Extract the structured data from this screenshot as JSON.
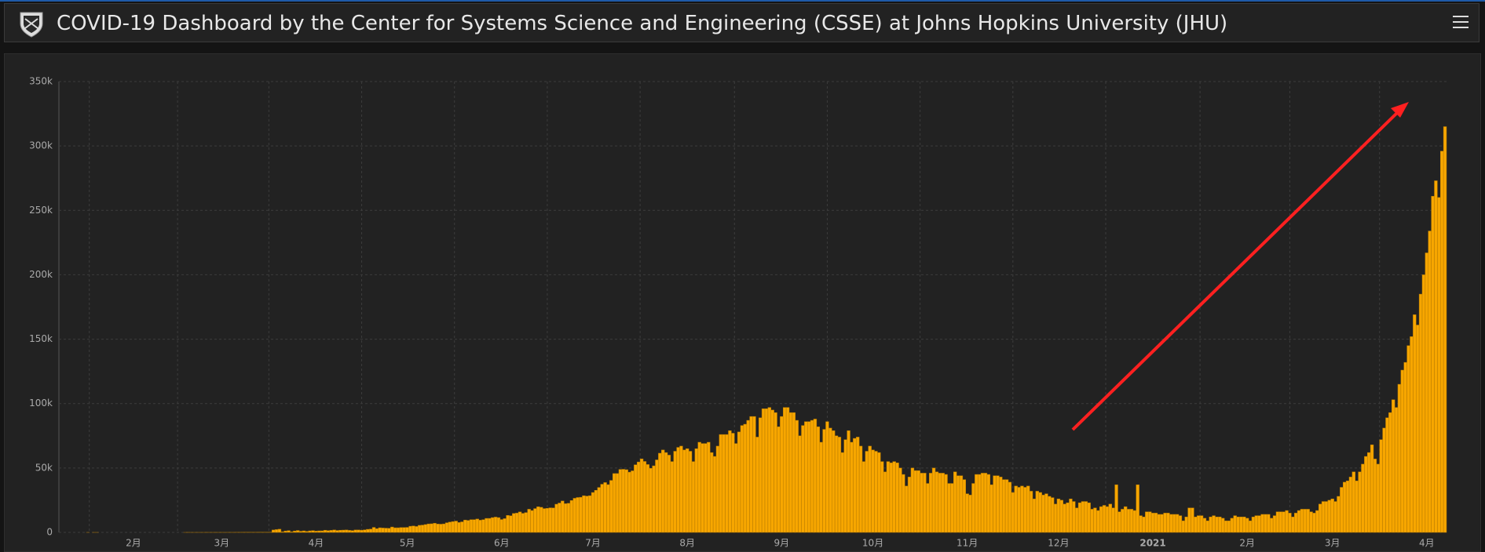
{
  "header": {
    "title": "COVID-19 Dashboard by the Center for Systems Science and Engineering (CSSE) at Johns Hopkins University (JHU)"
  },
  "chart_data": {
    "type": "bar",
    "color": "#f7a600",
    "grid": true,
    "ylim": [
      0,
      350000
    ],
    "yticks": [
      0,
      {
        "value": 50000,
        "label": "50k"
      },
      {
        "value": 100000,
        "label": "100k"
      },
      {
        "value": 150000,
        "label": "150k"
      },
      {
        "value": 200000,
        "label": "200k"
      },
      {
        "value": 250000,
        "label": "250k"
      },
      {
        "value": 300000,
        "label": "300k"
      },
      {
        "value": 350000,
        "label": "350k"
      }
    ],
    "categories": [
      null,
      null,
      null,
      null,
      null,
      null,
      null,
      null,
      null,
      null,
      null,
      null,
      null,
      null,
      null,
      null,
      null,
      null,
      null,
      null,
      null,
      null,
      null,
      null,
      "2月",
      null,
      null,
      null,
      null,
      null,
      null,
      null,
      null,
      null,
      null,
      null,
      null,
      null,
      null,
      null,
      null,
      null,
      null,
      null,
      null,
      null,
      null,
      null,
      null,
      null,
      null,
      null,
      null,
      "3月",
      null,
      null,
      null,
      null,
      null,
      null,
      null,
      null,
      null,
      null,
      null,
      null,
      null,
      null,
      null,
      null,
      null,
      null,
      null,
      null,
      null,
      null,
      null,
      null,
      null,
      null,
      null,
      null,
      null,
      null,
      "4月",
      null,
      null,
      null,
      null,
      null,
      null,
      null,
      null,
      null,
      null,
      null,
      null,
      null,
      null,
      null,
      null,
      null,
      null,
      null,
      null,
      null,
      null,
      null,
      null,
      null,
      null,
      null,
      null,
      null,
      "5月",
      null,
      null,
      null,
      null,
      null,
      null,
      null,
      null,
      null,
      null,
      null,
      null,
      null,
      null,
      null,
      null,
      null,
      null,
      null,
      null,
      null,
      null,
      null,
      null,
      null,
      null,
      null,
      null,
      null,
      null,
      "6月",
      null,
      null,
      null,
      null,
      null,
      null,
      null,
      null,
      null,
      null,
      null,
      null,
      null,
      null,
      null,
      null,
      null,
      null,
      null,
      null,
      null,
      null,
      null,
      null,
      null,
      null,
      null,
      null,
      null,
      "7月",
      null,
      null,
      null,
      null,
      null,
      null,
      null,
      null,
      null,
      null,
      null,
      null,
      null,
      null,
      null,
      null,
      null,
      null,
      null,
      null,
      null,
      null,
      null,
      null,
      null,
      null,
      null,
      null,
      null,
      null,
      "8月",
      null,
      null,
      null,
      null,
      null,
      null,
      null,
      null,
      null,
      null,
      null,
      null,
      null,
      null,
      null,
      null,
      null,
      null,
      null,
      null,
      null,
      null,
      null,
      null,
      null,
      null,
      null,
      null,
      null,
      null,
      "9月",
      null,
      null,
      null,
      null,
      null,
      null,
      null,
      null,
      null,
      null,
      null,
      null,
      null,
      null,
      null,
      null,
      null,
      null,
      null,
      null,
      null,
      null,
      null,
      null,
      null,
      null,
      null,
      null,
      null,
      "10月",
      null,
      null,
      null,
      null,
      null,
      null,
      null,
      null,
      null,
      null,
      null,
      null,
      null,
      null,
      null,
      null,
      null,
      null,
      null,
      null,
      null,
      null,
      null,
      null,
      null,
      null,
      null,
      null,
      null,
      null,
      "11月",
      null,
      null,
      null,
      null,
      null,
      null,
      null,
      null,
      null,
      null,
      null,
      null,
      null,
      null,
      null,
      null,
      null,
      null,
      null,
      null,
      null,
      null,
      null,
      null,
      null,
      null,
      null,
      null,
      null,
      "12月",
      null,
      null,
      null,
      null,
      null,
      null,
      null,
      null,
      null,
      null,
      null,
      null,
      null,
      null,
      null,
      null,
      null,
      null,
      null,
      null,
      null,
      null,
      null,
      null,
      null,
      null,
      null,
      null,
      null,
      null,
      "2021",
      null,
      null,
      null,
      null,
      null,
      null,
      null,
      null,
      null,
      null,
      null,
      null,
      null,
      null,
      null,
      null,
      null,
      null,
      null,
      null,
      null,
      null,
      null,
      null,
      null,
      null,
      null,
      null,
      null,
      null,
      "2月",
      null,
      null,
      null,
      null,
      null,
      null,
      null,
      null,
      null,
      null,
      null,
      null,
      null,
      null,
      null,
      null,
      null,
      null,
      null,
      null,
      null,
      null,
      null,
      null,
      null,
      null,
      null,
      "3月",
      null,
      null,
      null,
      null,
      null,
      null,
      null,
      null,
      null,
      null,
      null,
      null,
      null,
      null,
      null,
      null,
      null,
      null,
      null,
      null,
      null,
      null,
      null,
      null,
      null,
      null,
      null,
      null,
      null,
      null,
      "4月",
      null,
      null,
      null,
      null,
      null,
      null
    ],
    "values": [
      0,
      0,
      0,
      0,
      0,
      0,
      0,
      0,
      0,
      1,
      0,
      1,
      1,
      0,
      0,
      0,
      0,
      0,
      0,
      0,
      0,
      0,
      0,
      0,
      0,
      0,
      0,
      0,
      0,
      0,
      0,
      0,
      0,
      0,
      0,
      0,
      0,
      0,
      0,
      0,
      0,
      3,
      23,
      2,
      1,
      3,
      5,
      4,
      19,
      11,
      13,
      17,
      8,
      23,
      4,
      23,
      28,
      23,
      62,
      49,
      82,
      104,
      94,
      87,
      75,
      112,
      146,
      123,
      107,
      169,
      1900,
      2200,
      2500,
      500,
      1100,
      1400,
      500,
      1100,
      1500,
      900,
      1200,
      800,
      1200,
      1400,
      1000,
      1200,
      1200,
      1700,
      1400,
      1600,
      1900,
      1500,
      1700,
      1800,
      1900,
      1600,
      1400,
      1900,
      1900,
      1700,
      2000,
      2400,
      2600,
      3900,
      2900,
      3600,
      3400,
      3300,
      3200,
      4200,
      3600,
      3600,
      3800,
      3800,
      3900,
      4800,
      5000,
      4600,
      5500,
      5700,
      6100,
      6600,
      6700,
      7100,
      6500,
      6400,
      6600,
      7500,
      8000,
      8400,
      8800,
      7700,
      8200,
      9600,
      9300,
      9900,
      9900,
      10400,
      9500,
      9900,
      10900,
      10900,
      11500,
      11900,
      11500,
      10000,
      10700,
      13200,
      12900,
      14700,
      15000,
      15900,
      14800,
      15400,
      18000,
      17000,
      18500,
      19900,
      19500,
      18500,
      18700,
      19100,
      19000,
      21900,
      22800,
      24400,
      22300,
      22600,
      24800,
      26500,
      27100,
      27300,
      28500,
      28200,
      28500,
      31000,
      32700,
      34900,
      37400,
      38700,
      37100,
      40400,
      45700,
      45700,
      48900,
      49000,
      48700,
      46800,
      47800,
      52500,
      54700,
      57100,
      55100,
      52700,
      49800,
      51700,
      56300,
      61500,
      64000,
      62000,
      60000,
      55000,
      63000,
      66000,
      67000,
      64000,
      65000,
      63000,
      55000,
      65000,
      70000,
      69000,
      69000,
      70000,
      62000,
      59000,
      67000,
      76000,
      76000,
      76000,
      79000,
      77000,
      69000,
      78000,
      83000,
      84000,
      87000,
      90000,
      90000,
      74000,
      89000,
      96000,
      96000,
      97000,
      95000,
      93000,
      82000,
      90000,
      97000,
      97000,
      93000,
      93000,
      87000,
      75000,
      83000,
      86000,
      86000,
      87000,
      88000,
      82000,
      70000,
      80000,
      86000,
      81000,
      79000,
      75000,
      74000,
      62000,
      72000,
      79000,
      70000,
      73000,
      74000,
      67000,
      55000,
      63000,
      67000,
      64000,
      63000,
      62000,
      55000,
      47000,
      55000,
      54000,
      55000,
      54000,
      50000,
      45000,
      36000,
      43000,
      50000,
      48000,
      48000,
      46000,
      46000,
      38000,
      46000,
      50000,
      47000,
      46000,
      46000,
      45000,
      38000,
      38000,
      47000,
      44000,
      44000,
      41000,
      30000,
      29000,
      38000,
      45000,
      45000,
      46000,
      46000,
      45000,
      37000,
      44000,
      44000,
      43000,
      41000,
      41000,
      39000,
      31000,
      36000,
      35000,
      36000,
      35000,
      36000,
      32000,
      26000,
      32000,
      31000,
      29000,
      30000,
      28000,
      27000,
      22000,
      26000,
      25000,
      22000,
      23000,
      26000,
      24000,
      19000,
      23000,
      24000,
      24000,
      23000,
      18000,
      19000,
      17000,
      20000,
      21000,
      20000,
      22000,
      19000,
      37000,
      16000,
      18000,
      20000,
      18000,
      18000,
      17000,
      37000,
      13000,
      12000,
      16000,
      16000,
      15000,
      15000,
      14000,
      14000,
      15000,
      15000,
      14000,
      14000,
      14000,
      13000,
      9000,
      12000,
      19000,
      19000,
      12000,
      13000,
      13000,
      11000,
      9000,
      12000,
      13000,
      12000,
      12000,
      11000,
      9000,
      9000,
      11000,
      13000,
      12000,
      12000,
      12000,
      11000,
      9000,
      12000,
      13000,
      13000,
      14000,
      14000,
      14000,
      11000,
      13000,
      16000,
      16000,
      16000,
      17000,
      15000,
      12000,
      15000,
      17000,
      18000,
      18000,
      18000,
      16000,
      15000,
      17000,
      22000,
      24000,
      24000,
      25000,
      26000,
      24000,
      28000,
      35000,
      39000,
      40000,
      43000,
      47000,
      40000,
      47000,
      53000,
      59000,
      62000,
      68000,
      57000,
      53000,
      72000,
      81000,
      89000,
      93000,
      103000,
      97000,
      115000,
      126000,
      132000,
      145000,
      152000,
      169000,
      161000,
      185000,
      200000,
      217000,
      234000,
      261000,
      273000,
      260000,
      296000,
      315000
    ]
  }
}
